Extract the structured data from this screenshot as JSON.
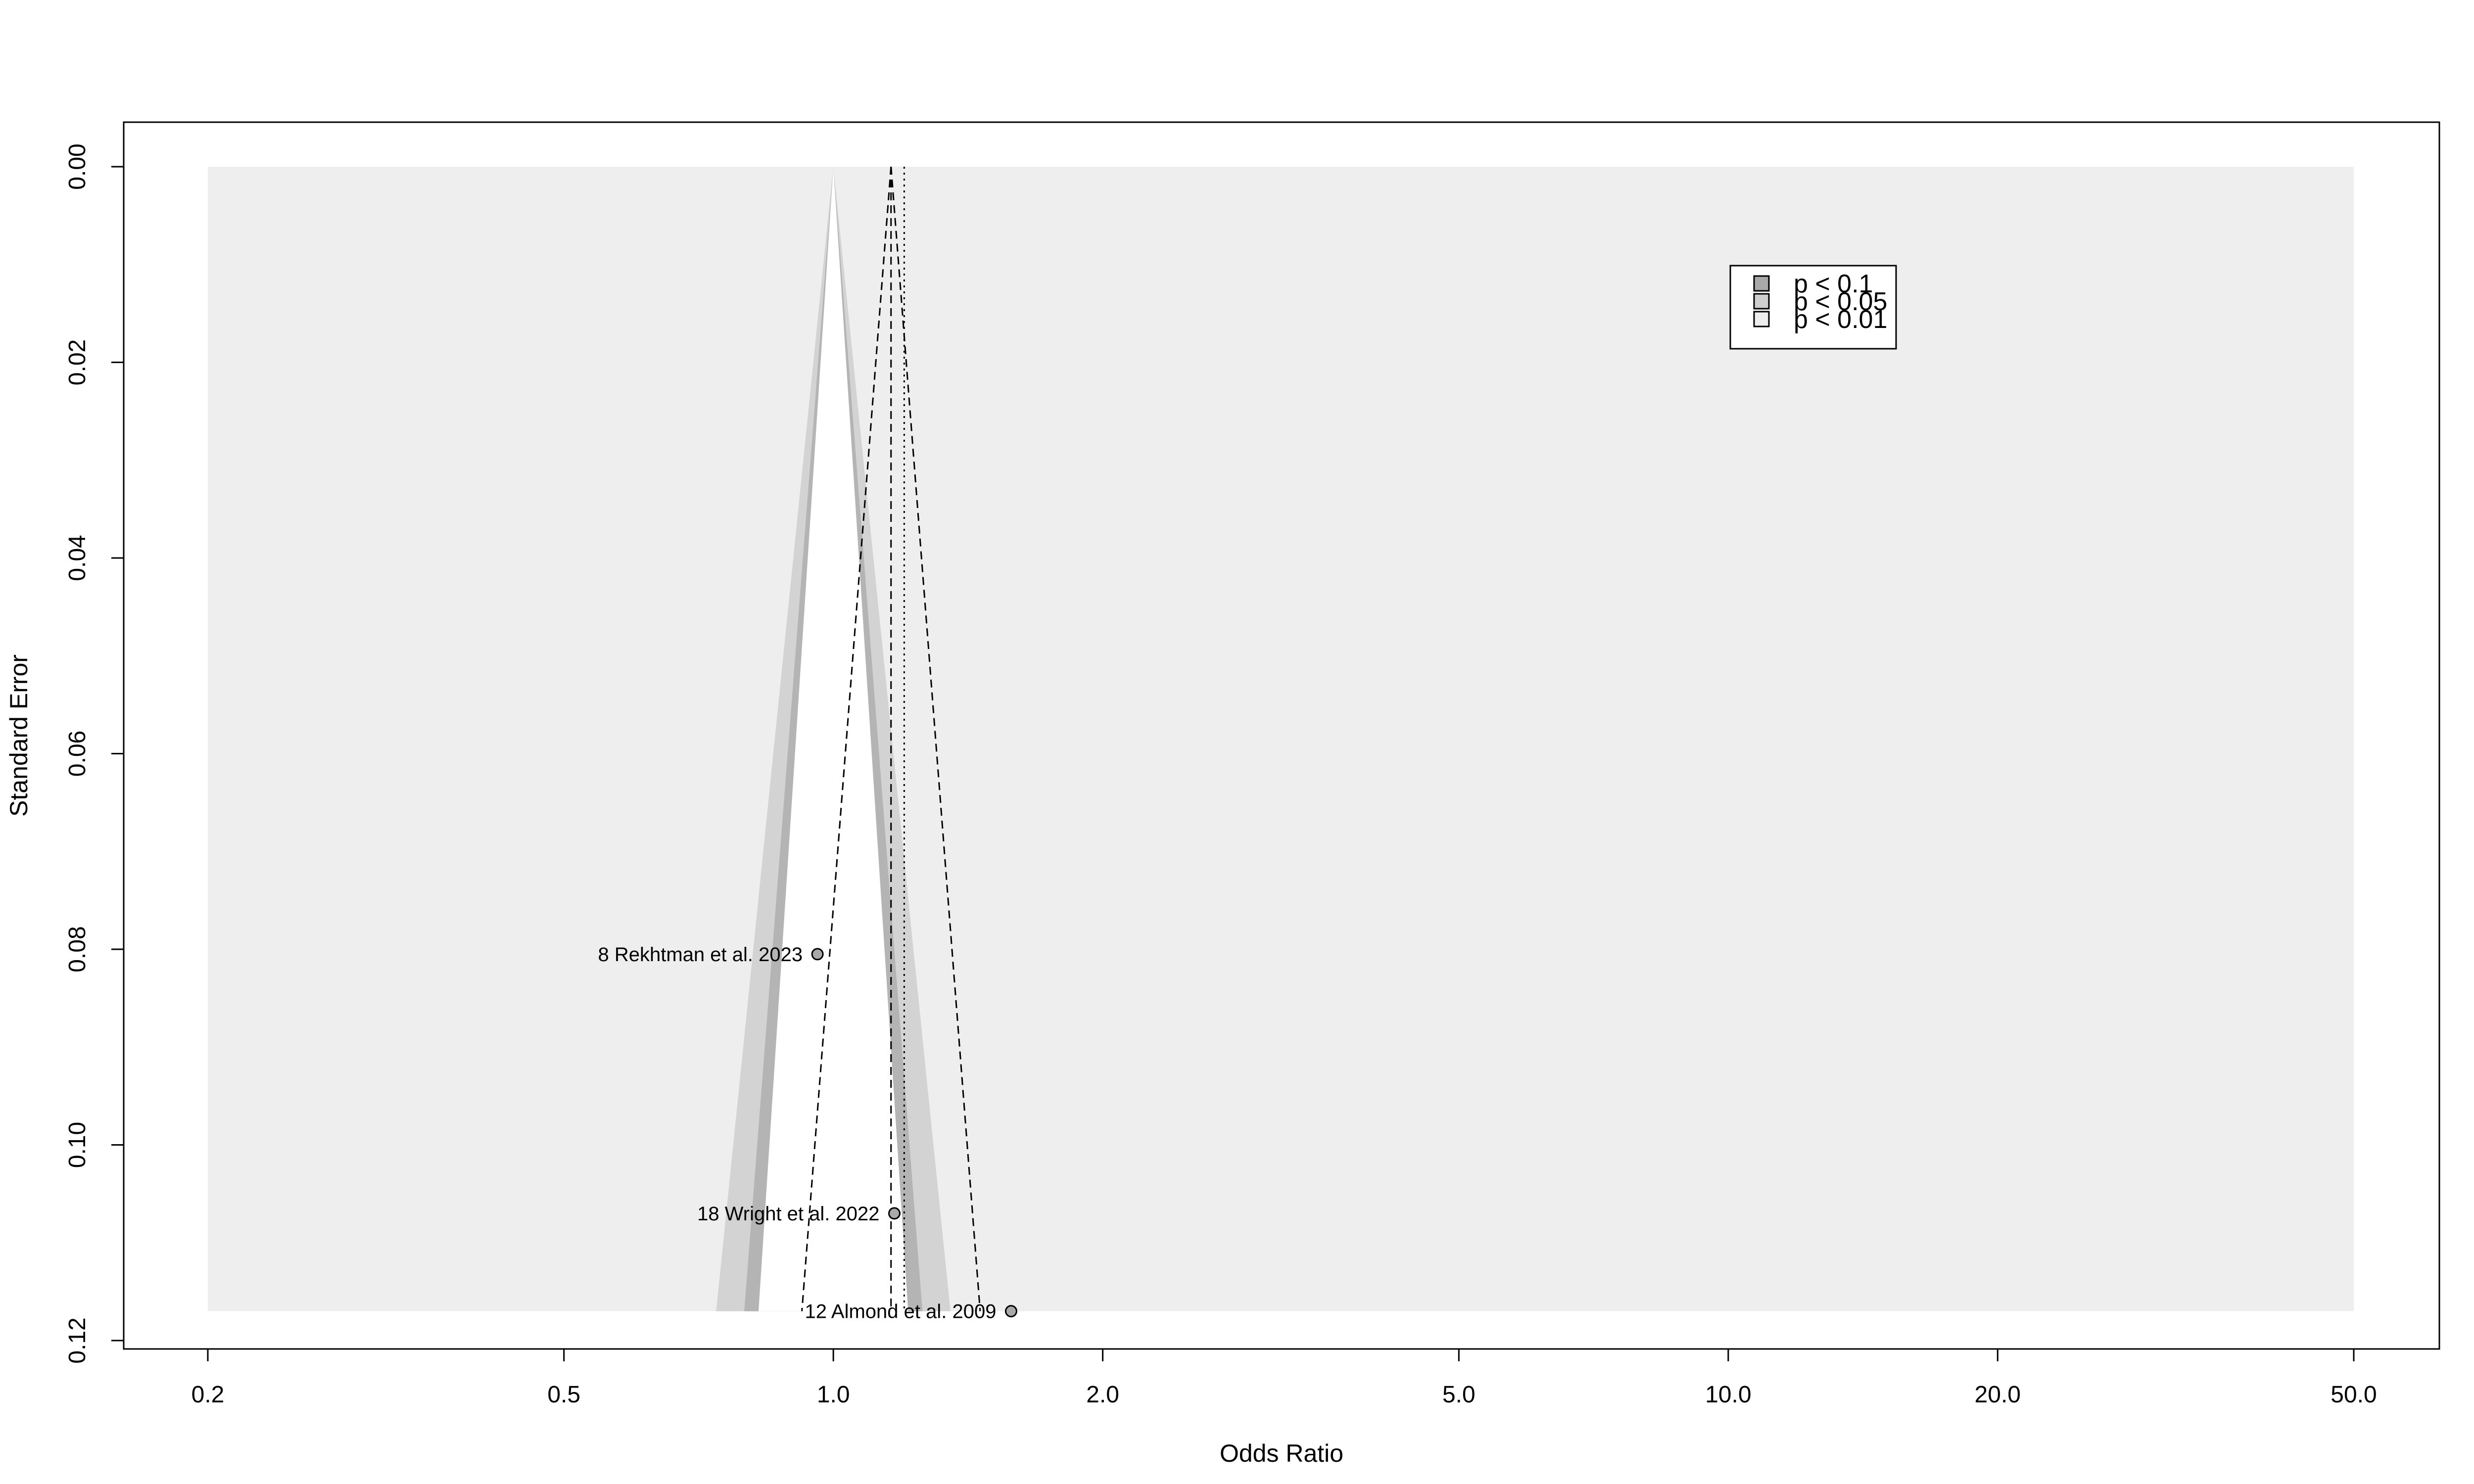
{
  "chart_data": {
    "type": "scatter",
    "subtype": "contour-enhanced funnel plot",
    "title": "",
    "xlabel": "Odds Ratio",
    "ylabel": "Standard Error",
    "x_scale": "log",
    "xlim": [
      0.2,
      50.0
    ],
    "ylim": [
      0.12,
      0.0
    ],
    "y_reversed": true,
    "x_ticks": [
      "0.2",
      "0.5",
      "1.0",
      "2.0",
      "5.0",
      "10.0",
      "20.0",
      "50.0"
    ],
    "y_ticks": [
      "0.00",
      "0.02",
      "0.04",
      "0.06",
      "0.08",
      "0.10",
      "0.12"
    ],
    "grid": false,
    "reference_lines": {
      "null_effect": 1.0,
      "fixed_effect": 1.16,
      "random_effect": 1.2
    },
    "legend": {
      "placement": "top-right",
      "entries": [
        {
          "label": "p < 0.1",
          "color": "#a9a9a9"
        },
        {
          "label": "p < 0.05",
          "color": "#cfcfcf"
        },
        {
          "label": "p < 0.01",
          "color": "#eeeeee"
        }
      ]
    },
    "points": [
      {
        "label": "8 Rekhtman et al. 2023",
        "or": 0.96,
        "se": 0.0805
      },
      {
        "label": "18 Wright et al. 2022",
        "or": 1.17,
        "se": 0.107
      },
      {
        "label": "12 Almond et al. 2009",
        "or": 1.58,
        "se": 0.117
      }
    ],
    "colors": {
      "background": "#ffffff",
      "outer_region": "#eeeeee",
      "band_05": "#d3d3d3",
      "band_10": "#b4b4b4",
      "point_fill": "#a9a9a9"
    }
  }
}
